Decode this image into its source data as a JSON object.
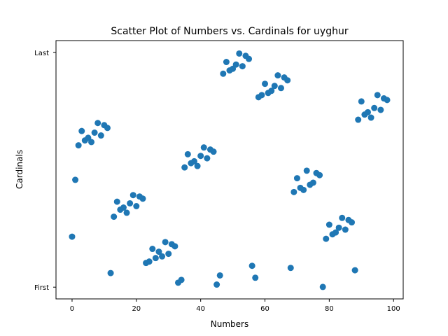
{
  "chart_data": {
    "type": "scatter",
    "title": "Scatter Plot of Numbers vs. Cardinals for uyghur",
    "xlabel": "Numbers",
    "ylabel": "Cardinals",
    "xlim": [
      -5,
      103
    ],
    "ylim": [
      -0.05,
      1.05
    ],
    "x_ticks": [
      0,
      20,
      40,
      60,
      80,
      100
    ],
    "x_tick_labels": [
      "0",
      "20",
      "40",
      "60",
      "80",
      "100"
    ],
    "y_ticks": [
      0,
      1
    ],
    "y_tick_labels": [
      "First",
      "Last"
    ],
    "grid": false,
    "legend": "none",
    "marker_color": "#1f77b4",
    "series": [
      {
        "x": [
          0,
          1,
          2,
          3,
          4,
          5,
          6,
          7,
          8,
          9,
          10,
          11,
          12,
          13,
          14,
          15,
          16,
          17,
          18,
          19,
          20,
          21,
          22,
          23,
          24,
          25,
          26,
          27,
          28,
          29,
          30,
          31,
          32,
          33,
          34,
          35,
          36,
          37,
          38,
          39,
          40,
          41,
          42,
          43,
          44,
          45,
          46,
          47,
          48,
          49,
          50,
          51,
          52,
          53,
          54,
          55,
          56,
          57,
          58,
          59,
          60,
          61,
          62,
          63,
          64,
          65,
          66,
          67,
          68,
          69,
          70,
          71,
          72,
          73,
          74,
          75,
          76,
          77,
          78,
          79,
          80,
          81,
          82,
          83,
          84,
          85,
          86,
          87,
          88,
          89,
          90,
          91,
          92,
          93,
          94,
          95,
          96,
          97,
          98
        ],
        "y": [
          0.215,
          0.457,
          0.604,
          0.665,
          0.625,
          0.636,
          0.618,
          0.658,
          0.699,
          0.646,
          0.69,
          0.678,
          0.06,
          0.3,
          0.364,
          0.33,
          0.339,
          0.317,
          0.357,
          0.392,
          0.345,
          0.386,
          0.377,
          0.103,
          0.109,
          0.163,
          0.124,
          0.151,
          0.131,
          0.192,
          0.142,
          0.183,
          0.174,
          0.019,
          0.031,
          0.51,
          0.566,
          0.528,
          0.536,
          0.516,
          0.559,
          0.595,
          0.549,
          0.586,
          0.577,
          0.011,
          0.05,
          0.909,
          0.959,
          0.923,
          0.93,
          0.948,
          0.995,
          0.941,
          0.985,
          0.972,
          0.091,
          0.04,
          0.809,
          0.818,
          0.866,
          0.827,
          0.836,
          0.857,
          0.902,
          0.848,
          0.893,
          0.881,
          0.082,
          0.405,
          0.464,
          0.423,
          0.414,
          0.496,
          0.436,
          0.445,
          0.486,
          0.477,
          0.001,
          0.206,
          0.266,
          0.225,
          0.233,
          0.253,
          0.295,
          0.245,
          0.286,
          0.276,
          0.072,
          0.713,
          0.791,
          0.735,
          0.745,
          0.722,
          0.763,
          0.818,
          0.755,
          0.804,
          0.797
        ]
      }
    ]
  }
}
